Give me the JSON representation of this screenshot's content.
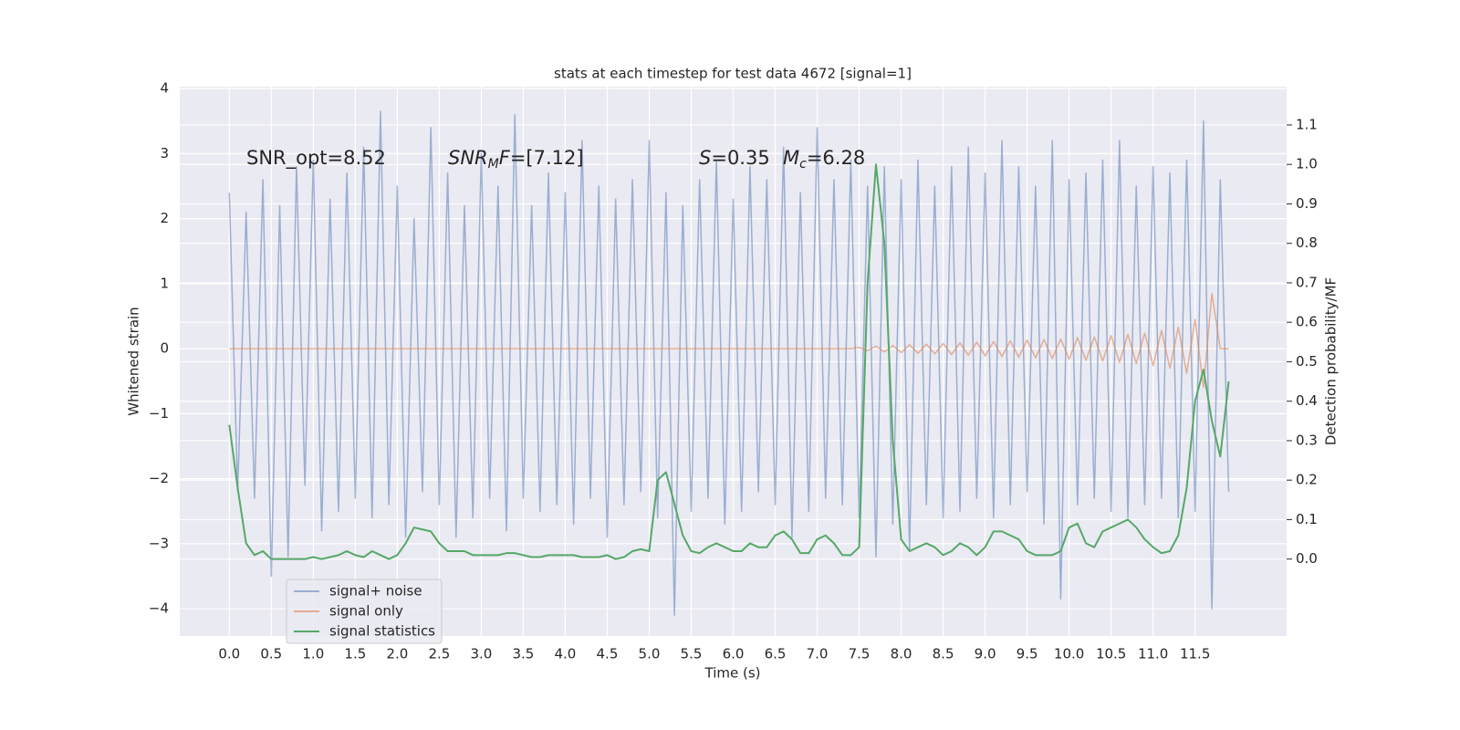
{
  "chart_data": {
    "type": "line",
    "title": "stats at each timestep for test data 4672 [signal=1]",
    "xlabel": "Time (s)",
    "ylabel": "Whitened strain",
    "y2label": "Detection probability/MF",
    "annotations": [
      [
        "SNR_opt=8.52"
      ],
      [
        "SNR",
        "M",
        "F",
        "=[7.12]"
      ],
      [
        "S",
        "=0.35"
      ],
      [
        "M",
        "c",
        "=6.28"
      ]
    ],
    "xlim": [
      -0.59,
      12.59
    ],
    "ylim": [
      -4.42,
      4.03
    ],
    "y2lim": [
      -0.195,
      1.197
    ],
    "xticks": [
      {
        "value": 0,
        "label": "0.0"
      },
      0.5,
      {
        "value": 1,
        "label": "1.0"
      },
      1.5,
      {
        "value": 2,
        "label": "2.0"
      },
      2.5,
      {
        "value": 3,
        "label": "3.0"
      },
      3.5,
      {
        "value": 4,
        "label": "4.0"
      },
      4.5,
      {
        "value": 5,
        "label": "5.0"
      },
      5.5,
      {
        "value": 6,
        "label": "6.0"
      },
      6.5,
      {
        "value": 7,
        "label": "7.0"
      },
      7.5,
      {
        "value": 8,
        "label": "8.0"
      },
      8.5,
      {
        "value": 9,
        "label": "9.0"
      },
      9.5,
      {
        "value": 10,
        "label": "10.0"
      },
      10.5,
      {
        "value": 11,
        "label": "11.0"
      },
      11.5
    ],
    "yticks": [
      {
        "value": -4,
        "label": "−4"
      },
      {
        "value": -3,
        "label": "−3"
      },
      {
        "value": -2,
        "label": "−2"
      },
      {
        "value": -1,
        "label": "−1"
      },
      0,
      1,
      2,
      3,
      4
    ],
    "y2ticks": [
      {
        "value": 0,
        "label": "0.0"
      },
      0.1,
      0.2,
      0.3,
      0.4,
      0.5,
      0.6,
      0.7,
      0.8,
      0.9,
      {
        "value": 1,
        "label": "1.0"
      },
      1.1
    ],
    "grid": true,
    "legend": "lower left",
    "x": [
      0,
      0.1,
      0.2,
      0.3,
      0.4,
      0.5,
      0.6,
      0.7,
      0.8,
      0.9,
      1,
      1.1,
      1.2,
      1.3,
      1.4,
      1.5,
      1.6,
      1.7,
      1.8,
      1.9,
      2,
      2.1,
      2.2,
      2.3,
      2.4,
      2.5,
      2.6,
      2.7,
      2.8,
      2.9,
      3,
      3.1,
      3.2,
      3.3,
      3.4,
      3.5,
      3.6,
      3.7,
      3.8,
      3.9,
      4,
      4.1,
      4.2,
      4.3,
      4.4,
      4.5,
      4.6,
      4.7,
      4.8,
      4.9,
      5,
      5.1,
      5.2,
      5.3,
      5.4,
      5.5,
      5.6,
      5.7,
      5.8,
      5.9,
      6,
      6.1,
      6.2,
      6.3,
      6.4,
      6.5,
      6.6,
      6.7,
      6.8,
      6.9,
      7,
      7.1,
      7.2,
      7.3,
      7.4,
      7.5,
      7.6,
      7.7,
      7.8,
      7.9,
      8,
      8.1,
      8.2,
      8.3,
      8.4,
      8.5,
      8.6,
      8.7,
      8.8,
      8.9,
      9,
      9.1,
      9.2,
      9.3,
      9.4,
      9.5,
      9.6,
      9.7,
      9.8,
      9.9,
      10,
      10.1,
      10.2,
      10.3,
      10.4,
      10.5,
      10.6,
      10.7,
      10.8,
      10.9,
      11,
      11.1,
      11.2,
      11.3,
      11.4,
      11.5,
      11.6,
      11.7,
      11.8,
      11.9
    ],
    "series": [
      {
        "name": "signal+ noise",
        "color": "#4c72b0",
        "alpha": 0.5,
        "values": [
          2.4,
          -2.2,
          2.1,
          -2.3,
          2.6,
          -3.5,
          2.2,
          -3.2,
          2.8,
          -2.1,
          2.9,
          -2.8,
          2.3,
          -2.5,
          2.7,
          -2.3,
          3.1,
          -2.6,
          3.65,
          -2.4,
          2.5,
          -2.9,
          2.0,
          -2.2,
          3.4,
          -2.4,
          2.7,
          -2.9,
          2.2,
          -2.6,
          3.0,
          -2.3,
          2.5,
          -2.8,
          3.6,
          -2.3,
          2.2,
          -2.5,
          2.7,
          -2.4,
          2.4,
          -2.7,
          3.2,
          -2.3,
          2.5,
          -2.9,
          2.3,
          -2.4,
          2.6,
          -2.2,
          3.2,
          -2.6,
          2.4,
          -4.1,
          2.2,
          -2.5,
          2.6,
          -2.3,
          2.9,
          -2.7,
          2.3,
          -2.5,
          2.8,
          -2.2,
          2.6,
          -2.4,
          3.1,
          -2.9,
          2.4,
          -2.5,
          3.4,
          -2.3,
          2.6,
          -2.4,
          2.9,
          -2.6,
          2.5,
          -3.2,
          2.8,
          -2.7,
          2.6,
          -3.1,
          2.9,
          -2.4,
          2.5,
          -2.6,
          2.8,
          -2.5,
          3.1,
          -2.3,
          2.7,
          -2.6,
          3.2,
          -2.4,
          2.8,
          -2.2,
          2.5,
          -2.7,
          3.2,
          -3.85,
          2.6,
          -2.4,
          2.7,
          -2.3,
          2.9,
          -2.5,
          3.2,
          -2.6,
          2.5,
          -2.4,
          2.8,
          -2.3,
          2.7,
          -2.6,
          2.9,
          -2.5,
          3.5,
          -4.0,
          2.6,
          -2.2
        ]
      },
      {
        "name": "signal only",
        "color": "#dd8452",
        "alpha": 0.6,
        "values": [
          0,
          0,
          0,
          0,
          0,
          0,
          0,
          0,
          0,
          0,
          0,
          0,
          0,
          0,
          0,
          0,
          0,
          0,
          0,
          0,
          0,
          0,
          0,
          0,
          0,
          0,
          0,
          0,
          0,
          0,
          0,
          0,
          0,
          0,
          0,
          0,
          0,
          0,
          0,
          0,
          0,
          0,
          0,
          0,
          0,
          0,
          0,
          0,
          0,
          0,
          0,
          0,
          0,
          0,
          0,
          0,
          0,
          0,
          0,
          0,
          0,
          0,
          0,
          0,
          0,
          0,
          0,
          0,
          0,
          0,
          0,
          0,
          0,
          0,
          0,
          0.02,
          -0.03,
          0.04,
          -0.05,
          0.05,
          -0.06,
          0.06,
          -0.07,
          0.07,
          -0.08,
          0.08,
          -0.09,
          0.09,
          -0.1,
          0.1,
          -0.11,
          0.11,
          -0.12,
          0.12,
          -0.13,
          0.13,
          -0.14,
          0.14,
          -0.15,
          0.15,
          -0.16,
          0.17,
          -0.18,
          0.18,
          -0.19,
          0.2,
          -0.21,
          0.22,
          -0.23,
          0.24,
          -0.26,
          0.28,
          -0.3,
          0.33,
          -0.38,
          0.45,
          -0.6,
          0.85,
          0,
          0
        ]
      },
      {
        "name": "signal statistics",
        "color": "#55a868",
        "alpha": 1,
        "axis": "y2",
        "values": [
          0.34,
          0.18,
          0.04,
          0.01,
          0.02,
          0,
          0,
          0,
          0,
          0,
          0.005,
          0,
          0.005,
          0.01,
          0.02,
          0.01,
          0.005,
          0.02,
          0.01,
          0,
          0.01,
          0.04,
          0.08,
          0.075,
          0.07,
          0.04,
          0.02,
          0.02,
          0.02,
          0.01,
          0.01,
          0.01,
          0.01,
          0.015,
          0.015,
          0.01,
          0.005,
          0.005,
          0.01,
          0.01,
          0.01,
          0.01,
          0.005,
          0.005,
          0.005,
          0.01,
          0,
          0.005,
          0.02,
          0.025,
          0.02,
          0.2,
          0.22,
          0.14,
          0.06,
          0.02,
          0.015,
          0.03,
          0.04,
          0.03,
          0.02,
          0.02,
          0.04,
          0.03,
          0.03,
          0.06,
          0.07,
          0.05,
          0.015,
          0.015,
          0.05,
          0.06,
          0.04,
          0.01,
          0.01,
          0.03,
          0.7,
          1.0,
          0.8,
          0.3,
          0.05,
          0.02,
          0.03,
          0.04,
          0.03,
          0.01,
          0.02,
          0.04,
          0.03,
          0.01,
          0.03,
          0.07,
          0.07,
          0.06,
          0.05,
          0.02,
          0.01,
          0.01,
          0.01,
          0.02,
          0.08,
          0.09,
          0.04,
          0.03,
          0.07,
          0.08,
          0.09,
          0.1,
          0.08,
          0.05,
          0.03,
          0.015,
          0.02,
          0.06,
          0.18,
          0.4,
          0.48,
          0.35,
          0.26,
          0.45
        ]
      }
    ]
  }
}
